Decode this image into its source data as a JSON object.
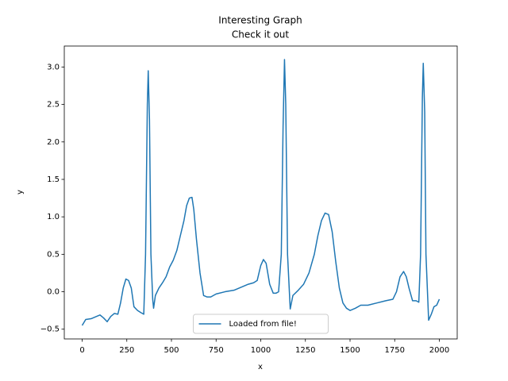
{
  "chart_data": {
    "type": "line",
    "title": "Interesting Graph",
    "subtitle": "Check it out",
    "x_label": "x",
    "y_label": "y",
    "x": [
      0,
      20,
      50,
      80,
      100,
      120,
      140,
      160,
      180,
      200,
      215,
      230,
      245,
      260,
      275,
      290,
      310,
      330,
      345,
      355,
      365,
      370,
      377,
      385,
      395,
      400,
      410,
      430,
      450,
      470,
      490,
      510,
      530,
      550,
      570,
      585,
      600,
      615,
      625,
      640,
      660,
      680,
      700,
      720,
      750,
      800,
      850,
      900,
      930,
      960,
      980,
      1000,
      1015,
      1030,
      1050,
      1070,
      1085,
      1100,
      1115,
      1125,
      1133,
      1140,
      1150,
      1165,
      1180,
      1210,
      1240,
      1270,
      1300,
      1320,
      1340,
      1360,
      1380,
      1400,
      1420,
      1440,
      1460,
      1480,
      1500,
      1530,
      1560,
      1600,
      1650,
      1700,
      1740,
      1760,
      1780,
      1800,
      1815,
      1830,
      1850,
      1870,
      1885,
      1895,
      1905,
      1910,
      1918,
      1925,
      1940,
      1955,
      1970,
      1985,
      2000
    ],
    "series": [
      {
        "name": "Loaded from file!",
        "color": "#1f77b4",
        "values": [
          -0.45,
          -0.37,
          -0.36,
          -0.33,
          -0.31,
          -0.35,
          -0.4,
          -0.33,
          -0.29,
          -0.3,
          -0.15,
          0.05,
          0.17,
          0.15,
          0.05,
          -0.2,
          -0.25,
          -0.28,
          -0.3,
          0.5,
          2.5,
          2.95,
          2.3,
          0.5,
          -0.1,
          -0.22,
          -0.05,
          0.05,
          0.12,
          0.2,
          0.33,
          0.42,
          0.55,
          0.75,
          0.95,
          1.15,
          1.25,
          1.26,
          1.1,
          0.7,
          0.25,
          -0.05,
          -0.07,
          -0.07,
          -0.03,
          0.0,
          0.02,
          0.07,
          0.1,
          0.12,
          0.15,
          0.35,
          0.43,
          0.38,
          0.1,
          -0.02,
          -0.02,
          0.0,
          0.5,
          2.2,
          3.1,
          2.5,
          0.5,
          -0.23,
          -0.05,
          0.02,
          0.1,
          0.25,
          0.5,
          0.75,
          0.95,
          1.05,
          1.03,
          0.8,
          0.4,
          0.05,
          -0.15,
          -0.22,
          -0.25,
          -0.22,
          -0.18,
          -0.18,
          -0.15,
          -0.12,
          -0.1,
          0.0,
          0.2,
          0.27,
          0.2,
          0.05,
          -0.12,
          -0.12,
          -0.14,
          0.5,
          2.6,
          3.05,
          2.4,
          0.5,
          -0.38,
          -0.3,
          -0.2,
          -0.18,
          -0.1
        ]
      }
    ],
    "xlim": [
      -100,
      2100
    ],
    "ylim": [
      -0.63,
      3.28
    ],
    "xticks": [
      0,
      250,
      500,
      750,
      1000,
      1250,
      1500,
      1750,
      2000
    ],
    "yticks": [
      {
        "value": -0.5,
        "label": "−0.5"
      },
      {
        "value": 0,
        "label": "0.0"
      },
      {
        "value": 0.5,
        "label": "0.5"
      },
      {
        "value": 1,
        "label": "1.0"
      },
      {
        "value": 1.5,
        "label": "1.5"
      },
      {
        "value": 2,
        "label": "2.0"
      },
      {
        "value": 2.5,
        "label": "2.5"
      },
      {
        "value": 3,
        "label": "3.0"
      }
    ],
    "legend": "lower center"
  }
}
